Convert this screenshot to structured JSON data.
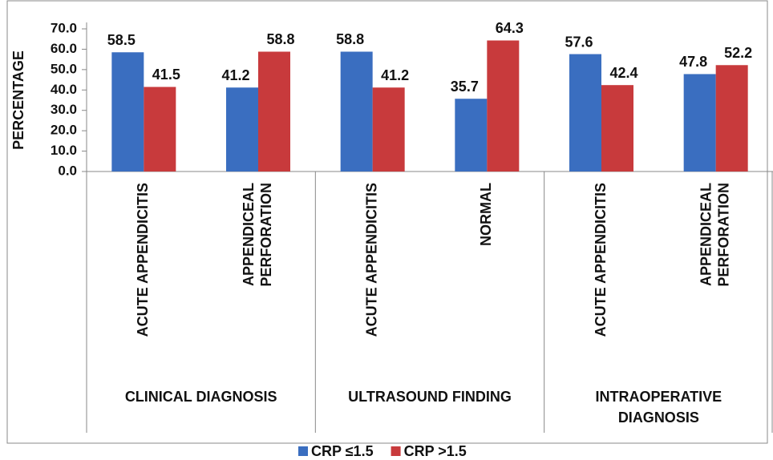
{
  "chart_data": {
    "type": "bar",
    "y_label": "PERCENTAGE",
    "categories": [
      [
        "ACUTE APPENDICITIS"
      ],
      [
        "APPENDICEAL",
        "PERFORATION"
      ],
      [
        "ACUTE APPENDICITIS"
      ],
      [
        "NORMAL"
      ],
      [
        "ACUTE APPENDICITIS"
      ],
      [
        "APPENDICEAL",
        "PERFORATION"
      ]
    ],
    "groups": [
      [
        "CLINICAL DIAGNOSIS"
      ],
      [
        "ULTRASOUND FINDING"
      ],
      [
        "INTRAOPERATIVE",
        "DIAGNOSIS"
      ]
    ],
    "series": [
      {
        "name": "CRP ≤1.5",
        "color": "#3a6ec0",
        "values": [
          58.5,
          41.2,
          58.8,
          35.7,
          57.6,
          47.8
        ]
      },
      {
        "name": "CRP >1.5",
        "color": "#c83a3c",
        "values": [
          41.5,
          58.8,
          41.2,
          64.3,
          42.4,
          52.2
        ]
      }
    ],
    "ylim": [
      0,
      70
    ],
    "yticks": [
      {
        "value": 0,
        "label": "0.0"
      },
      {
        "value": 10,
        "label": "10.0"
      },
      {
        "value": 20,
        "label": "20.0"
      },
      {
        "value": 30,
        "label": "30.0"
      },
      {
        "value": 40,
        "label": "40.0"
      },
      {
        "value": 50,
        "label": "50.0"
      },
      {
        "value": 60,
        "label": "60.0"
      },
      {
        "value": 70,
        "label": "70.0"
      }
    ],
    "legend": "bottom"
  }
}
